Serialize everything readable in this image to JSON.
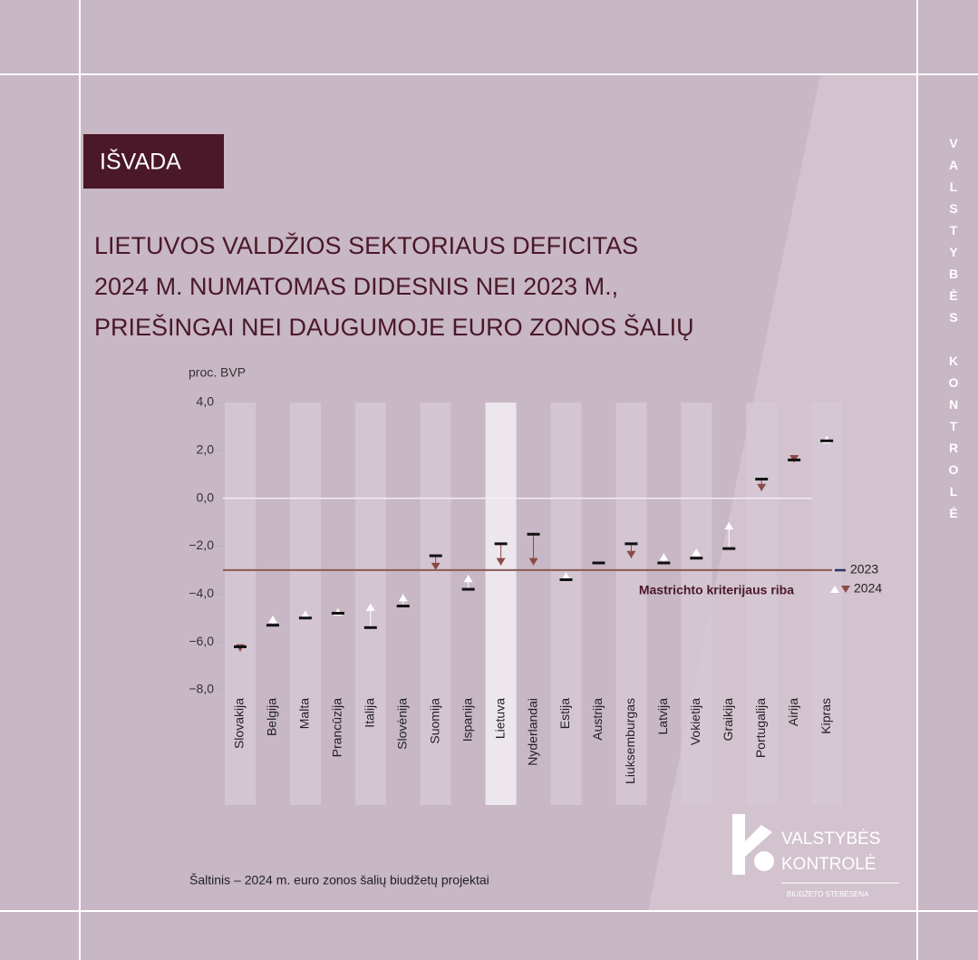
{
  "badge": "IŠVADA",
  "side_text": "VALSTYBĖS KONTROLĖ",
  "logo": {
    "line1": "VALSTYBĖS",
    "line2": "KONTROLĖ",
    "tagline": "BIUDŽETO STEBĖSENA"
  },
  "source": "Šaltinis – 2024 m. euro zonos šalių biudžetų projektai",
  "chart_data": {
    "type": "range_marker",
    "title_lines": [
      "LIETUVOS VALDŽIOS SEKTORIAUS DEFICITAS",
      "2024 M. NUMATOMAS DIDESNIS NEI 2023 M.,",
      "PRIEŠINGAI NEI DAUGUMOJE EURO ZONOS ŠALIŲ"
    ],
    "y_label": "proc. BVP",
    "categories": [
      "Slovakija",
      "Belgija",
      "Malta",
      "Prancūzija",
      "Italija",
      "Slovėnija",
      "Suomija",
      "Ispanija",
      "Lietuva",
      "Nyderlandai",
      "Estija",
      "Austrija",
      "Liuksemburgas",
      "Latvija",
      "Vokietija",
      "Graikija",
      "Portugalija",
      "Airija",
      "Kipras"
    ],
    "highlight": "Lietuva",
    "series": [
      {
        "name": "2023",
        "color": "#111111",
        "legend_color": "#2a3560",
        "values": [
          -6.2,
          -5.3,
          -5.0,
          -4.8,
          -5.4,
          -4.5,
          -2.4,
          -3.8,
          -1.9,
          -1.5,
          -3.4,
          -2.7,
          -1.9,
          -2.7,
          -2.5,
          -2.1,
          0.8,
          1.6,
          2.4
        ]
      },
      {
        "name": "2024",
        "color": "#8a4a45",
        "up_color": "#ffffff",
        "values": [
          -6.4,
          -4.9,
          -4.7,
          -4.6,
          -4.4,
          -4.0,
          -3.0,
          -3.2,
          -2.8,
          -2.8,
          -3.1,
          -2.7,
          -2.5,
          -2.3,
          -2.1,
          -1.0,
          0.3,
          1.5,
          2.6
        ]
      }
    ],
    "threshold": {
      "value": -3.0,
      "label": "Mastrichto kriterijaus riba",
      "color": "#8b5a55"
    },
    "ylim": [
      -8,
      4
    ],
    "yticks": [
      {
        "value": 4,
        "label": "4,0"
      },
      {
        "value": 2,
        "label": "2,0"
      },
      {
        "value": 0,
        "label": "0,0"
      },
      {
        "value": -2,
        "label": "−2,0"
      },
      {
        "value": -4,
        "label": "−4,0"
      },
      {
        "value": -6,
        "label": "−6,0"
      },
      {
        "value": -8,
        "label": "−8,0"
      }
    ],
    "legend": "right"
  }
}
